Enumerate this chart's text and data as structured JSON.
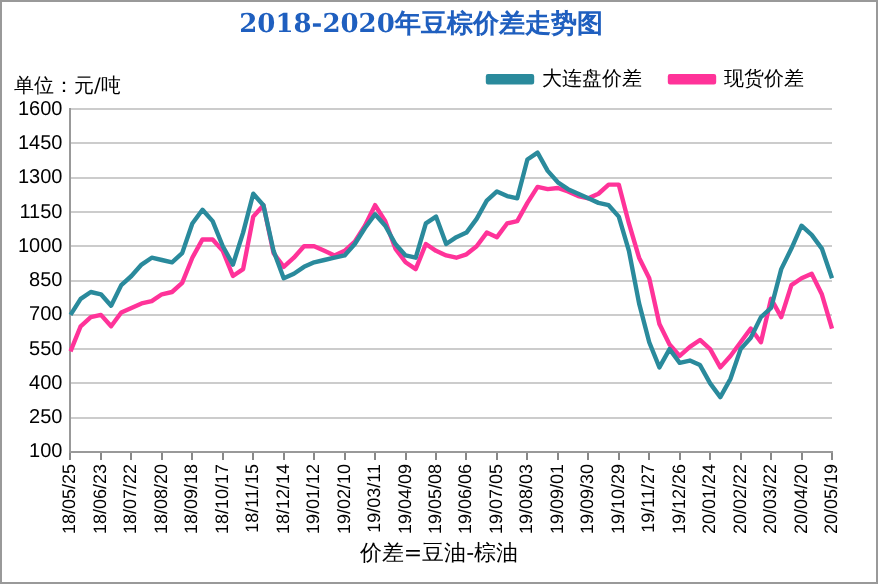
{
  "chart_data": {
    "type": "line",
    "title": "2018-2020年豆棕价差走势图",
    "ylabel": "单位：元/吨",
    "annotations": [
      "价差=豆油-棕油"
    ],
    "categories": [
      "18/05/25",
      null,
      null,
      "18/06/23",
      null,
      null,
      "18/07/22",
      null,
      null,
      "18/08/20",
      null,
      null,
      "18/09/18",
      null,
      null,
      "18/10/17",
      null,
      null,
      "18/11/15",
      null,
      null,
      "18/12/14",
      null,
      null,
      "19/01/12",
      null,
      null,
      "19/02/10",
      null,
      null,
      "19/03/11",
      null,
      null,
      "19/04/09",
      null,
      null,
      "19/05/08",
      null,
      null,
      "19/06/06",
      null,
      null,
      "19/07/05",
      null,
      null,
      "19/08/03",
      null,
      null,
      "19/09/01",
      null,
      null,
      "19/09/30",
      null,
      null,
      "19/10/29",
      null,
      null,
      "19/11/27",
      null,
      null,
      "19/12/26",
      null,
      null,
      "20/01/24",
      null,
      null,
      "20/02/22",
      null,
      null,
      "20/03/22",
      null,
      null,
      "20/04/20",
      null,
      null,
      "20/05/19"
    ],
    "series": [
      {
        "name": "大连盘价差",
        "color": "#2a8a9c",
        "values": [
          700,
          770,
          800,
          790,
          740,
          830,
          870,
          920,
          950,
          940,
          930,
          970,
          1100,
          1160,
          1110,
          1000,
          920,
          1060,
          1230,
          1180,
          980,
          860,
          880,
          910,
          930,
          940,
          950,
          960,
          1010,
          1080,
          1140,
          1090,
          1010,
          960,
          950,
          1100,
          1130,
          1010,
          1040,
          1060,
          1120,
          1200,
          1240,
          1220,
          1210,
          1380,
          1410,
          1330,
          1280,
          1250,
          1230,
          1210,
          1190,
          1180,
          1130,
          980,
          750,
          580,
          470,
          550,
          490,
          500,
          480,
          400,
          340,
          420,
          550,
          600,
          690,
          730,
          900,
          990,
          1090,
          1050,
          990,
          860
        ]
      },
      {
        "name": "现货价差",
        "color": "#ff3399",
        "values": [
          540,
          650,
          690,
          700,
          650,
          710,
          730,
          750,
          760,
          790,
          800,
          840,
          950,
          1030,
          1030,
          980,
          870,
          900,
          1130,
          1180,
          970,
          910,
          950,
          1000,
          1000,
          980,
          960,
          980,
          1020,
          1090,
          1180,
          1110,
          990,
          930,
          900,
          1010,
          980,
          960,
          950,
          965,
          1000,
          1060,
          1040,
          1100,
          1110,
          1190,
          1260,
          1250,
          1255,
          1240,
          1220,
          1210,
          1230,
          1270,
          1270,
          1100,
          950,
          860,
          660,
          570,
          520,
          560,
          590,
          550,
          470,
          520,
          580,
          640,
          580,
          770,
          690,
          830,
          860,
          880,
          790,
          640
        ]
      }
    ],
    "ylim": [
      100,
      1600
    ],
    "yticks": [
      100,
      250,
      400,
      550,
      700,
      850,
      1000,
      1150,
      1300,
      1450,
      1600
    ],
    "grid": "y",
    "legend": "top right",
    "marker": "none",
    "line_style": "solid"
  }
}
